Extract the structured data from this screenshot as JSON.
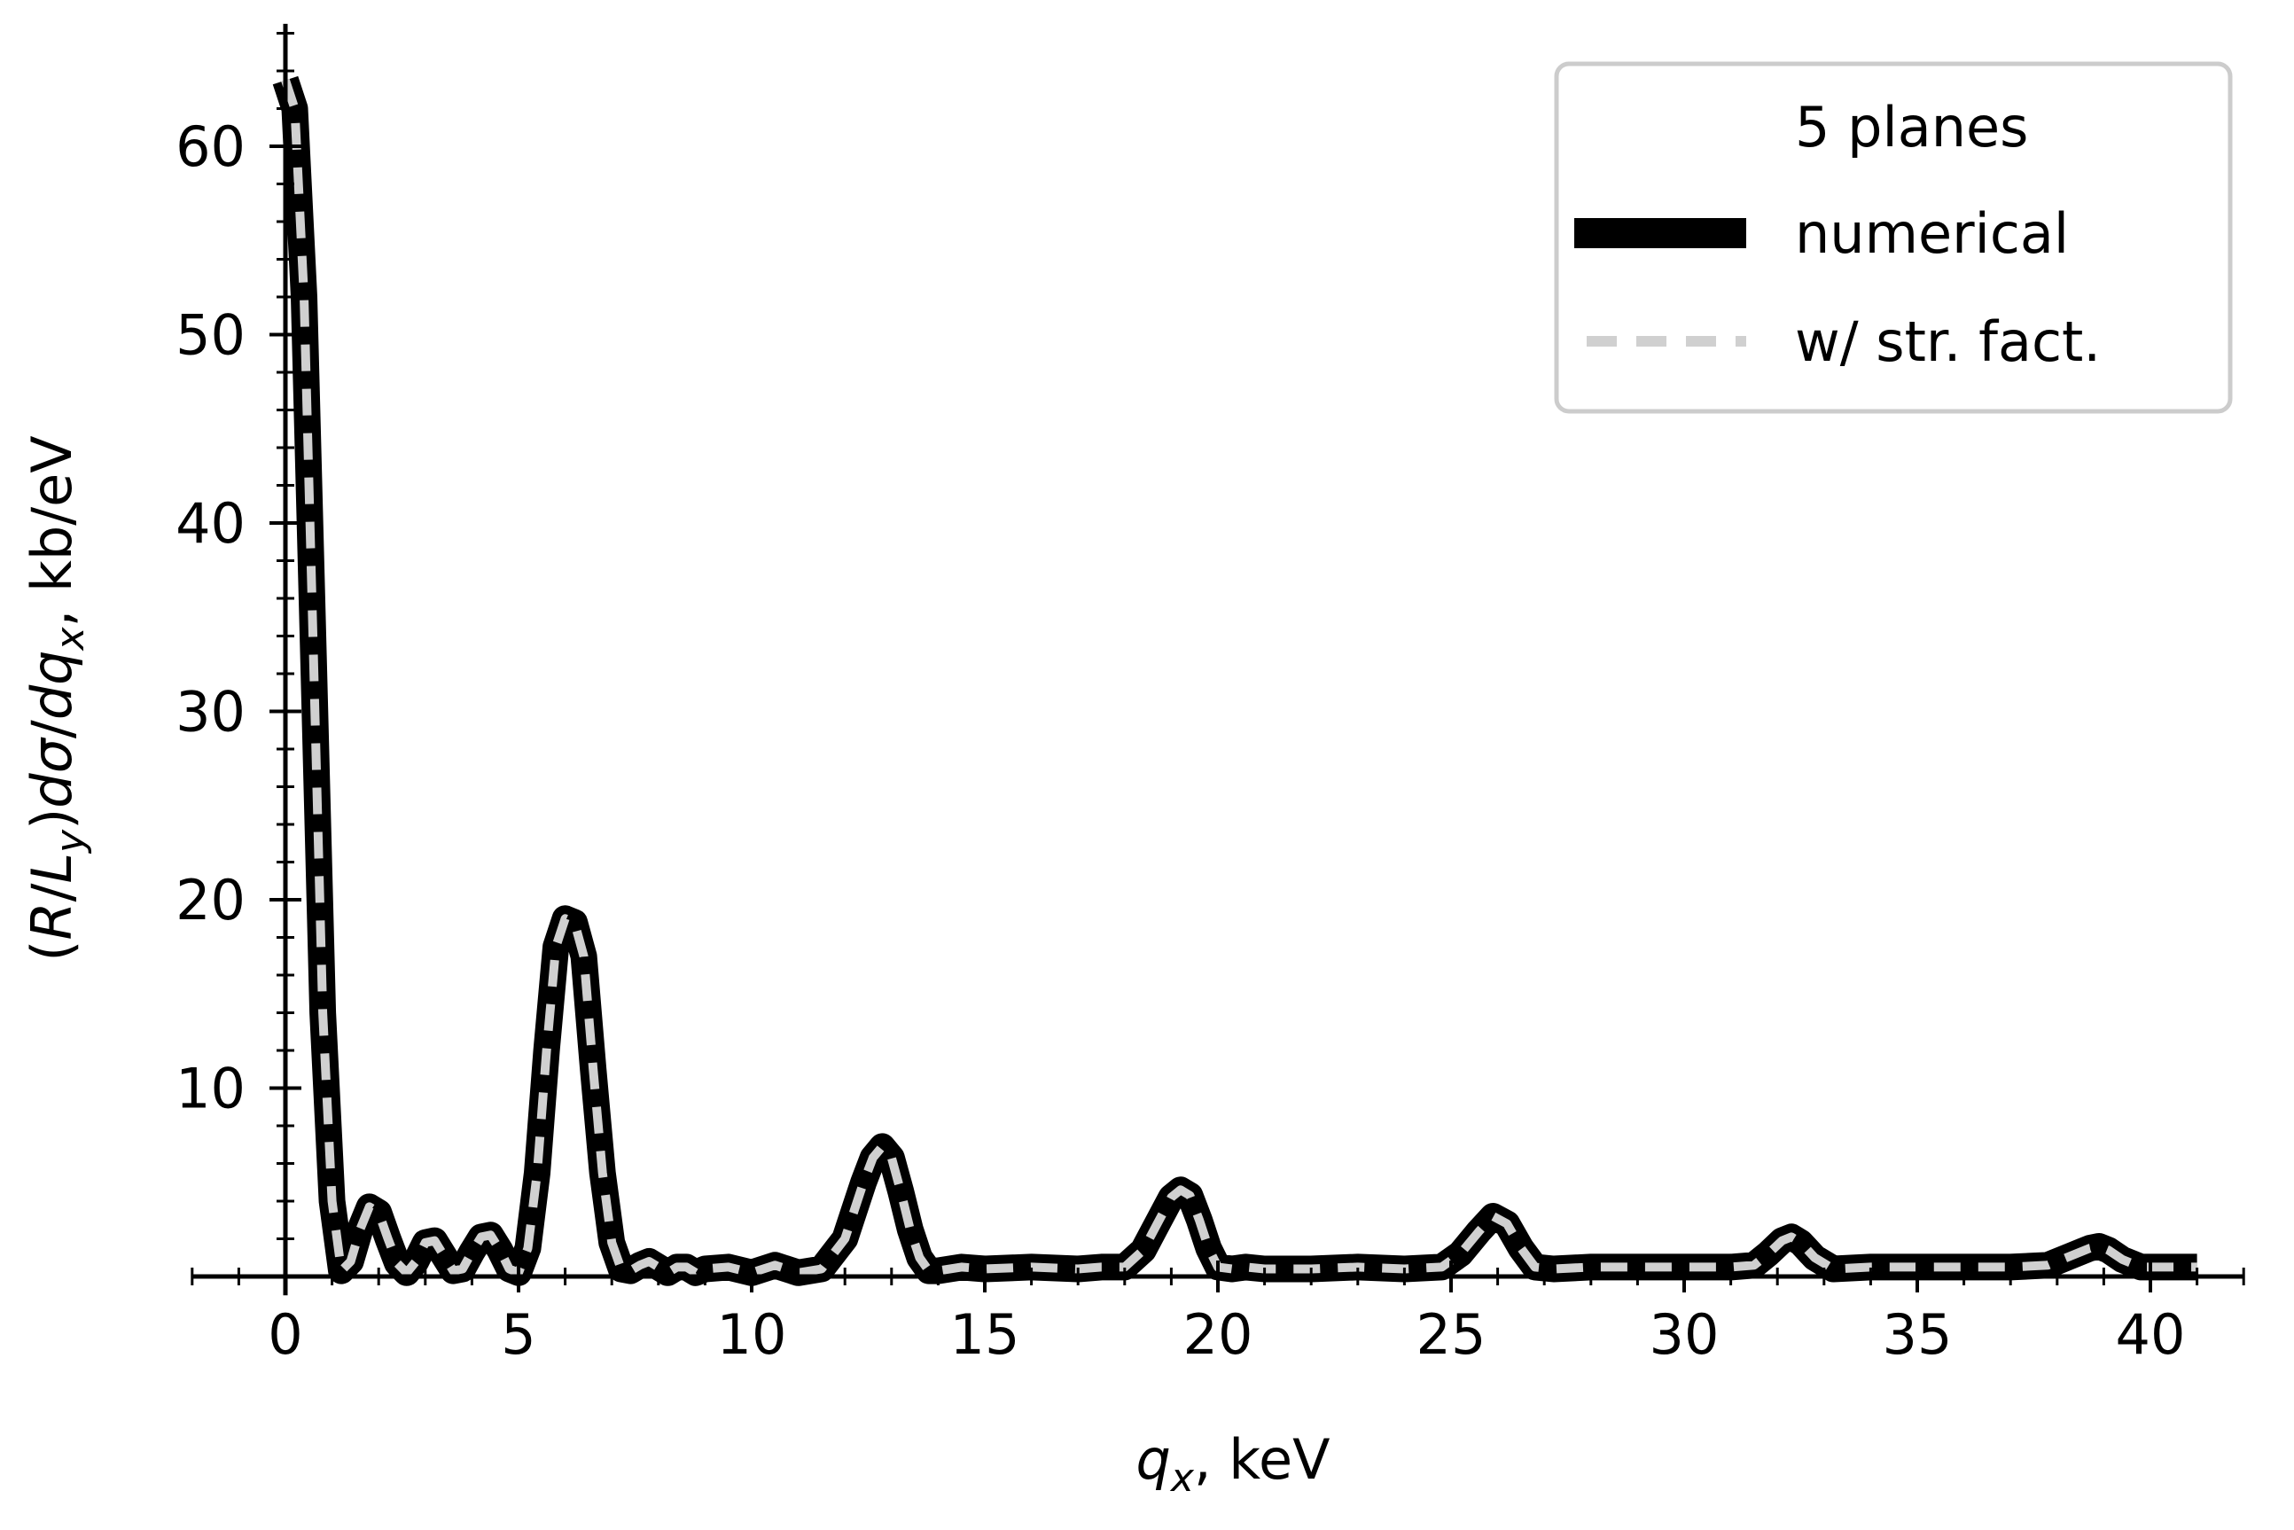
{
  "chart_data": {
    "type": "line",
    "xlabel_var": "q",
    "xlabel_sub": "x",
    "xlabel_unit": ", keV",
    "ylabel_parts": [
      "(",
      "R",
      "/",
      "L",
      "y",
      ")",
      "dσ",
      "/",
      "dq",
      "x",
      ", kb/eV"
    ],
    "xlim": [
      -2,
      42
    ],
    "ylim": [
      -1,
      66.5
    ],
    "xticks": [
      0,
      5,
      10,
      15,
      20,
      25,
      30,
      35,
      40
    ],
    "xtick_labels": [
      "0",
      "5",
      "10",
      "15",
      "20",
      "25",
      "30",
      "35",
      "40"
    ],
    "yticks": [
      10,
      20,
      30,
      40,
      50,
      60
    ],
    "ytick_labels": [
      "10",
      "20",
      "30",
      "40",
      "50",
      "60"
    ],
    "legend_title": "5 planes",
    "legend_position": "top-right",
    "grid": false,
    "series": [
      {
        "name": "numerical",
        "style": "solid",
        "color": "#000000",
        "x": [
          0,
          0.2,
          0.4,
          0.6,
          0.8,
          1.0,
          1.2,
          1.4,
          1.6,
          1.8,
          2.0,
          2.2,
          2.4,
          2.6,
          2.8,
          3.0,
          3.2,
          3.4,
          3.6,
          3.8,
          4.0,
          4.2,
          4.4,
          4.6,
          4.8,
          5.0,
          5.2,
          5.4,
          5.6,
          5.8,
          6.0,
          6.2,
          6.4,
          6.6,
          6.8,
          7.0,
          7.2,
          7.4,
          7.6,
          7.8,
          8.0,
          8.2,
          8.4,
          8.6,
          8.8,
          9.0,
          9.5,
          10.0,
          10.5,
          11.0,
          11.5,
          12.0,
          12.2,
          12.4,
          12.6,
          12.8,
          13.0,
          13.2,
          13.4,
          13.6,
          13.8,
          14.0,
          14.5,
          15.0,
          16.0,
          17.0,
          17.5,
          18.0,
          18.4,
          18.7,
          19.0,
          19.2,
          19.4,
          19.6,
          19.8,
          20.0,
          20.3,
          20.6,
          21.0,
          22.0,
          23.0,
          24.0,
          24.8,
          25.2,
          25.6,
          25.9,
          26.2,
          26.5,
          26.8,
          27.2,
          28.0,
          29.0,
          30.0,
          31.0,
          31.5,
          31.8,
          32.1,
          32.3,
          32.5,
          32.8,
          33.2,
          34.0,
          35.0,
          36.0,
          37.0,
          37.8,
          38.3,
          38.7,
          38.9,
          39.1,
          39.4,
          39.8,
          40.2,
          40.6,
          41.0
        ],
        "y": [
          63.5,
          62,
          52,
          33,
          14,
          4,
          0.3,
          0.8,
          2.5,
          3.7,
          3.4,
          2,
          0.7,
          0.2,
          0.8,
          1.8,
          1.9,
          1.1,
          0.3,
          0.4,
          1.3,
          2.1,
          2.2,
          1.4,
          0.4,
          0.2,
          1.5,
          5.5,
          12,
          17.5,
          19,
          18.8,
          17,
          11,
          5.5,
          1.8,
          0.4,
          0.3,
          0.6,
          0.8,
          0.5,
          0.2,
          0.5,
          0.5,
          0.2,
          0.4,
          0.5,
          0.2,
          0.6,
          0.2,
          0.4,
          2,
          3.5,
          5,
          6.3,
          6.9,
          6.3,
          4.5,
          2.5,
          1,
          0.3,
          0.3,
          0.5,
          0.4,
          0.5,
          0.4,
          0.5,
          0.5,
          1.4,
          2.8,
          4.2,
          4.6,
          4.3,
          3,
          1.5,
          0.5,
          0.4,
          0.5,
          0.4,
          0.4,
          0.5,
          0.4,
          0.5,
          1.2,
          2.4,
          3.2,
          2.8,
          1.5,
          0.5,
          0.4,
          0.5,
          0.5,
          0.5,
          0.5,
          0.6,
          1.2,
          1.9,
          2.1,
          1.8,
          1,
          0.4,
          0.5,
          0.5,
          0.5,
          0.5,
          0.6,
          1.1,
          1.5,
          1.6,
          1.4,
          0.9,
          0.5,
          0.5,
          0.5,
          0.5
        ]
      },
      {
        "name": "w/ str. fact.",
        "style": "dashed",
        "color": "#d0d0d0",
        "x": [
          0,
          0.2,
          0.4,
          0.6,
          0.8,
          1.0,
          1.2,
          1.4,
          1.6,
          1.8,
          2.0,
          2.2,
          2.4,
          2.6,
          2.8,
          3.0,
          3.2,
          3.4,
          3.6,
          3.8,
          4.0,
          4.2,
          4.4,
          4.6,
          4.8,
          5.0,
          5.2,
          5.4,
          5.6,
          5.8,
          6.0,
          6.2,
          6.4,
          6.6,
          6.8,
          7.0,
          7.2,
          7.4,
          7.6,
          7.8,
          8.0,
          8.2,
          8.4,
          8.6,
          8.8,
          9.0,
          9.5,
          10.0,
          10.5,
          11.0,
          11.5,
          12.0,
          12.2,
          12.4,
          12.6,
          12.8,
          13.0,
          13.2,
          13.4,
          13.6,
          13.8,
          14.0,
          14.5,
          15.0,
          16.0,
          17.0,
          17.5,
          18.0,
          18.4,
          18.7,
          19.0,
          19.2,
          19.4,
          19.6,
          19.8,
          20.0,
          20.3,
          20.6,
          21.0,
          22.0,
          23.0,
          24.0,
          24.8,
          25.2,
          25.6,
          25.9,
          26.2,
          26.5,
          26.8,
          27.2,
          28.0,
          29.0,
          30.0,
          31.0,
          31.5,
          31.8,
          32.1,
          32.3,
          32.5,
          32.8,
          33.2,
          34.0,
          35.0,
          36.0,
          37.0,
          37.8,
          38.3,
          38.7,
          38.9,
          39.1,
          39.4,
          39.8,
          40.2,
          40.6,
          41.0
        ],
        "y": [
          63.5,
          62,
          52,
          33,
          14,
          4,
          0.3,
          0.8,
          2.5,
          3.7,
          3.4,
          2,
          0.7,
          0.2,
          0.8,
          1.8,
          1.9,
          1.1,
          0.3,
          0.4,
          1.3,
          2.1,
          2.2,
          1.4,
          0.4,
          0.2,
          1.5,
          5.5,
          12,
          17.5,
          19,
          18.8,
          17,
          11,
          5.5,
          1.8,
          0.4,
          0.3,
          0.6,
          0.8,
          0.5,
          0.2,
          0.5,
          0.5,
          0.2,
          0.4,
          0.5,
          0.2,
          0.6,
          0.2,
          0.4,
          2,
          3.5,
          5,
          6.3,
          6.9,
          6.3,
          4.5,
          2.5,
          1,
          0.3,
          0.3,
          0.5,
          0.4,
          0.5,
          0.4,
          0.5,
          0.5,
          1.4,
          2.8,
          4.2,
          4.6,
          4.3,
          3,
          1.5,
          0.5,
          0.4,
          0.5,
          0.4,
          0.4,
          0.5,
          0.4,
          0.5,
          1.2,
          2.4,
          3.2,
          2.8,
          1.5,
          0.5,
          0.4,
          0.5,
          0.5,
          0.5,
          0.5,
          0.6,
          1.2,
          1.9,
          2.1,
          1.8,
          1,
          0.4,
          0.5,
          0.5,
          0.5,
          0.5,
          0.6,
          1.1,
          1.5,
          1.6,
          1.4,
          0.9,
          0.5,
          0.5,
          0.5,
          0.5
        ]
      }
    ]
  }
}
